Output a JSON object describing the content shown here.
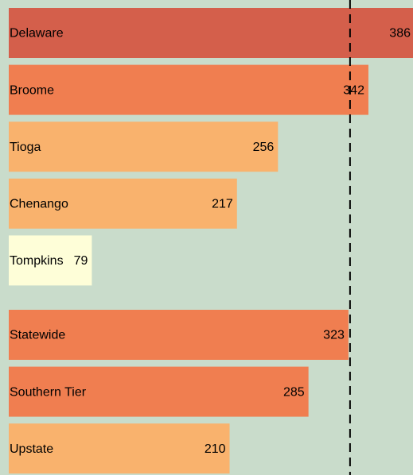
{
  "chart_data": {
    "type": "bar",
    "orientation": "horizontal",
    "categories": [
      "Delaware",
      "Broome",
      "Tioga",
      "Chenango",
      "Tompkins",
      "Statewide",
      "Southern Tier",
      "Upstate"
    ],
    "values": [
      386,
      342,
      256,
      217,
      79,
      323,
      285,
      210
    ],
    "colors": [
      "#d45f4b",
      "#f07e50",
      "#f9b26d",
      "#f9b26d",
      "#fefed8",
      "#f07e50",
      "#f07e50",
      "#f9b26d"
    ]
  }
}
